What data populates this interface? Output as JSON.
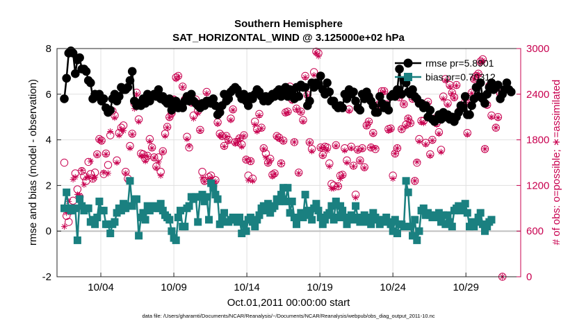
{
  "chart_data": {
    "type": "line",
    "title": "Southern Hemisphere",
    "subtitle": "SAT_HORIZONTAL_WIND @ 3.125000e+02 hPa",
    "xlabel": "Oct.01,2011 00:00:00 start",
    "ylabel": "rmse and bias (model - observation)",
    "ylabel_right": "# of obs: o=possible; ∗=assimilated",
    "footnote": "data file: /Users/gharamti/Documents/NCAR/Reanalysis/~/Documents/NCAR/Reanalysis/webpub/obs_diag_output_2011-10.nc",
    "x_tick_labels": [
      "10/04",
      "10/09",
      "10/14",
      "10/19",
      "10/24",
      "10/29"
    ],
    "x_tick_days": [
      4,
      9,
      14,
      19,
      24,
      29
    ],
    "xlim": [
      1.0,
      32.75
    ],
    "ylim": [
      -2,
      8
    ],
    "y_ticks": [
      -2,
      0,
      2,
      4,
      6,
      8
    ],
    "y2lim": [
      0,
      3000
    ],
    "y2_ticks": [
      0,
      600,
      1200,
      1800,
      2400,
      3000
    ],
    "grid": true,
    "legend_position": "top-right",
    "colors": {
      "rmse": "#000000",
      "bias": "#1a8080",
      "obs": "#c8004f",
      "zero_line": "#c0c0c0",
      "grid": "#e0e0e0"
    },
    "series": [
      {
        "name": "rmse pr=5.8901",
        "axis": "left",
        "marker": "circle",
        "values": [
          5.8,
          6.7,
          7.8,
          7.9,
          7.8,
          6.9,
          7.5,
          7.6,
          7.1,
          7.1,
          7.0,
          6.6,
          6.5,
          5.8,
          6.0,
          5.9,
          6.0,
          5.7,
          5.8,
          5.4,
          5.2,
          5.3,
          5.8,
          6.0,
          5.7,
          5.9,
          6.3,
          6.2,
          6.2,
          6.3,
          6.6,
          7.0,
          5.7,
          5.5,
          5.6,
          5.5,
          5.8,
          5.6,
          6.0,
          5.7,
          5.9,
          6.0,
          5.9,
          6.2,
          5.8,
          5.9,
          5.7,
          5.6,
          5.8,
          5.3,
          5.6,
          5.7,
          5.4,
          5.5,
          5.4,
          5.7,
          5.9,
          5.7,
          6.0,
          5.7,
          5.6,
          5.5,
          5.4,
          5.6,
          5.5,
          5.7,
          5.7,
          5.6,
          5.8,
          5.5,
          5.1,
          5.2,
          5.5,
          6.0,
          5.7,
          5.8,
          6.1,
          6.2,
          6.3,
          6.2,
          6.0,
          5.8,
          6.0,
          5.7,
          5.5,
          5.9,
          5.8,
          6.0,
          6.2,
          6.1,
          5.9,
          5.7,
          5.9,
          5.7,
          5.8,
          6.0,
          5.9,
          6.1,
          6.2,
          5.9,
          6.2,
          6.3,
          5.9,
          6.2,
          6.0,
          5.8,
          6.3,
          5.9,
          6.4,
          6.3,
          6.3,
          5.5,
          5.7,
          6.5,
          6.3,
          6.5,
          6.4,
          6.8,
          6.2,
          6.0,
          6.5,
          6.1,
          5.7,
          5.7,
          5.5,
          5.4,
          5.5,
          5.4,
          6.0,
          5.8,
          6.2,
          6.0,
          6.1,
          5.7,
          5.4,
          5.3,
          6.0,
          5.8,
          6.1,
          5.9,
          5.7,
          5.5,
          5.2,
          5.2,
          5.9,
          5.6,
          5.4,
          5.5,
          5.3,
          5.9,
          6.0,
          5.9,
          6.2,
          7.1,
          6.0,
          6.6,
          6.5,
          6.1,
          6.0,
          6.2,
          5.9,
          5.8,
          5.6,
          5.6,
          5.4,
          5.5,
          5.0,
          5.3,
          4.9,
          4.8,
          4.9,
          5.1,
          4.9,
          5.2,
          5.0,
          5.1,
          4.9,
          5.0,
          4.8,
          5.0,
          5.2,
          5.5,
          5.4,
          5.9,
          5.1,
          5.1,
          5.5,
          5.8,
          6.3,
          5.9,
          6.5,
          5.8,
          5.6,
          6.0,
          6.3,
          6.5,
          6.2,
          6.3,
          6.4,
          5.8,
          6.0,
          6.2,
          6.5,
          6.2,
          6.1
        ]
      },
      {
        "name": "bias pr=0.70312",
        "axis": "left",
        "marker": "square",
        "values": [
          1.0,
          1.7,
          1.0,
          0.9,
          1.0,
          1.0,
          -0.4,
          1.4,
          1.1,
          0.9,
          1.0,
          1.0,
          0.4,
          0.5,
          0.3,
          0.6,
          1.3,
          0.9,
          0.9,
          0.3,
          0.3,
          -0.1,
          0.3,
          0.4,
          0.8,
          1.0,
          0.9,
          1.2,
          1.0,
          1.1,
          2.2,
          1.1,
          1.4,
          1.4,
          -0.2,
          0.6,
          0.8,
          0.5,
          1.1,
          0.9,
          1.1,
          1.1,
          1.0,
          1.0,
          1.2,
          0.9,
          0.7,
          0.6,
          0.5,
          0.0,
          -0.3,
          -0.4,
          0.6,
          0.9,
          0.2,
          0.2,
          1.0,
          1.1,
          1.5,
          1.4,
          1.5,
          0.4,
          1.5,
          1.6,
          1.3,
          1.5,
          0.5,
          2.1,
          1.9,
          1.6,
          1.4,
          0.3,
          0.6,
          0.8,
          0.4,
          0.4,
          0.5,
          0.6,
          0.5,
          0.4,
          0.6,
          -0.1,
          0.3,
          0.0,
          0.5,
          0.6,
          0.4,
          0.2,
          0.5,
          0.7,
          1.0,
          1.1,
          0.9,
          1.2,
          0.8,
          1.0,
          1.1,
          1.4,
          1.3,
          1.6,
          1.9,
          1.3,
          1.9,
          0.8,
          1.3,
          0.6,
          0.3,
          0.6,
          0.8,
          0.6,
          1.6,
          0.9,
          0.7,
          0.5,
          1.0,
          1.2,
          0.9,
          0.6,
          0.3,
          0.5,
          0.7,
          0.8,
          1.1,
          0.5,
          1.3,
          0.6,
          1.1,
          0.9,
          0.6,
          0.3,
          0.6,
          0.7,
          0.5,
          1.1,
          0.6,
          0.4,
          0.6,
          0.7,
          0.4,
          0.6,
          0.3,
          0.8,
          0.6,
          0.5,
          0.3,
          0.4,
          0.5,
          0.6,
          0.4,
          0.3,
          0.0,
          0.5,
          -0.1,
          0.3,
          0.3,
          0.2,
          2.2,
          1.7,
          0.2,
          -0.2,
          0.5,
          -0.4,
          0.0,
          0.9,
          1.0,
          0.7,
          0.8,
          0.7,
          0.6,
          0.7,
          0.6,
          0.8,
          0.4,
          0.7,
          0.3,
          0.7,
          0.4,
          0.2,
          0.9,
          1.0,
          1.1,
          0.9,
          1.0,
          1.2,
          0.8,
          0.2,
          0.4,
          0.2,
          0.4,
          0.6,
          0.8,
          0.3,
          0.0,
          0.2,
          0.4,
          0.5
        ]
      },
      {
        "name": "obs possible",
        "axis": "right",
        "marker": "open-circle",
        "values": [
          1500,
          800,
          720,
          870,
          1000,
          1360,
          1150,
          1050,
          1390,
          1320,
          1260,
          1510,
          1350,
          1290,
          1370,
          1610,
          1810,
          1790,
          1350,
          1620,
          1470,
          1860,
          2180,
          2120,
          1530,
          1890,
          1960,
          1990,
          1380,
          1290,
          1720,
          1880,
          2280,
          2420,
          2070,
          1620,
          1610,
          1550,
          1590,
          1810,
          1700,
          1570,
          1450,
          1570,
          1380,
          1650,
          1880,
          1970,
          2100,
          2150,
          2330,
          2620,
          2640,
          2250,
          2500,
          2330,
          1840,
          1700,
          2290,
          2120,
          2330,
          2180,
          1930,
          1380,
          1260,
          2430,
          1310,
          1330,
          1190,
          1270,
          2030,
          1880,
          1850,
          1720,
          1850,
          1800,
          2080,
          2200,
          1770,
          1770,
          1820,
          1740,
          1860,
          1540,
          1330,
          1520,
          1290,
          2040,
          1940,
          2140,
          1960,
          1690,
          1620,
          1500,
          1550,
          1340,
          1360,
          1850,
          1830,
          1490,
          1790,
          2160,
          2170,
          2500,
          2330,
          1770,
          2210,
          1370,
          2170,
          2060,
          2640,
          2390,
          1770,
          1680,
          2690,
          2960,
          2940,
          1700,
          1600,
          1710,
          1700,
          1490,
          1220,
          1200,
          1730,
          1190,
          1330,
          1340,
          1690,
          1530,
          2200,
          1710,
          1460,
          1080,
          1670,
          1530,
          1690,
          1440,
          1990,
          2040,
          1700,
          1890,
          1680,
          2250,
          2280,
          2440,
          2440,
          2270,
          1940,
          1950,
          1330,
          1620,
          1690,
          2360,
          1940,
          2270,
          2000,
          2080,
          2020,
          2340,
          1260,
          1500,
          1810,
          2050,
          2050,
          1760,
          2300,
          1610,
          1800,
          2080,
          2020,
          1900,
          1670,
          2370,
          2600,
          2280,
          2520,
          2420,
          2360,
          2520,
          2170,
          2230,
          2240,
          2300,
          1890,
          2280,
          2420,
          2600,
          2640,
          2670,
          2830,
          2860,
          1680,
          2260,
          2510,
          2120,
          2490,
          1960,
          2100,
          2410,
          0
        ]
      },
      {
        "name": "obs assimilated",
        "axis": "right",
        "marker": "asterisk",
        "values": [
          660,
          840,
          990,
          850,
          1280,
          1310,
          1080,
          1070,
          1400,
          1210,
          1300,
          1320,
          1520,
          1290,
          1310,
          1600,
          1800,
          1780,
          1370,
          1610,
          1360,
          1910,
          2170,
          2090,
          1500,
          1860,
          1940,
          1920,
          1360,
          1270,
          1690,
          1870,
          2210,
          2400,
          2040,
          1590,
          1590,
          1520,
          1580,
          1780,
          1690,
          1560,
          1430,
          1510,
          1330,
          1640,
          1850,
          1960,
          2090,
          2140,
          2340,
          2600,
          2630,
          2230,
          2490,
          2320,
          1810,
          1720,
          2280,
          2080,
          2310,
          2150,
          1920,
          1300,
          1250,
          2410,
          1280,
          1300,
          1170,
          1250,
          2010,
          1860,
          1840,
          1710,
          1840,
          1780,
          2060,
          2190,
          1750,
          1770,
          1820,
          1710,
          1850,
          1540,
          1270,
          1520,
          1260,
          2000,
          1910,
          2120,
          1950,
          1680,
          1570,
          1490,
          1530,
          1320,
          1350,
          1840,
          1810,
          1490,
          1780,
          2150,
          2160,
          2480,
          2310,
          1770,
          2200,
          1360,
          2160,
          2040,
          2620,
          2380,
          1760,
          1650,
          2650,
          2940,
          2900,
          1690,
          1590,
          1700,
          1660,
          1450,
          1160,
          1160,
          1720,
          1190,
          1290,
          1330,
          1660,
          1500,
          2180,
          1690,
          1450,
          1040,
          1660,
          1520,
          1680,
          1430,
          1980,
          2030,
          1700,
          1880,
          1690,
          2240,
          2270,
          2420,
          2430,
          2250,
          1920,
          1940,
          1290,
          1620,
          1690,
          2360,
          1940,
          2270,
          1980,
          2080,
          2020,
          2330,
          1260,
          1510,
          1780,
          2030,
          2020,
          1740,
          2280,
          1590,
          1790,
          2070,
          2000,
          1880,
          1640,
          2340,
          2580,
          2260,
          2500,
          2410,
          2350,
          2510,
          2160,
          2220,
          2240,
          2290,
          1870,
          2270,
          2410,
          2590,
          2640,
          2660,
          2820,
          2840,
          1680,
          2250,
          2500,
          2100,
          2490,
          1960,
          2090,
          2400,
          0
        ]
      }
    ]
  }
}
